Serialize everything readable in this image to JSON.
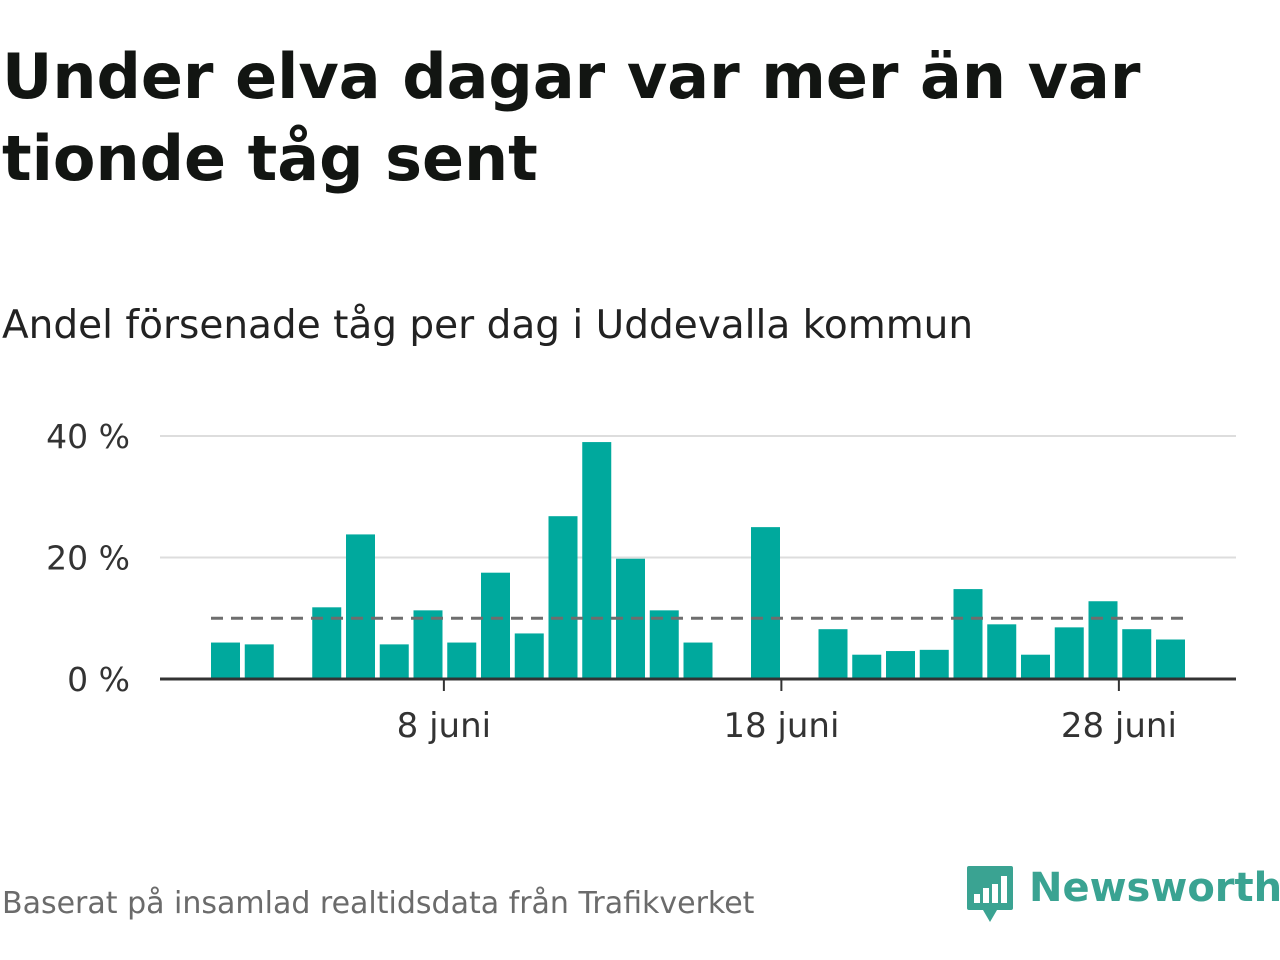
{
  "title": "Under elva dagar var mer än var tionde tåg sent",
  "subtitle": "Andel försenade tåg per dag i Uddevalla kommun",
  "footer": "Baserat på insamlad realtidsdata från Trafikverket",
  "brand": {
    "name": "Newsworthy",
    "color": "#3aa392",
    "icon": "newsworthy-logo-icon"
  },
  "colors": {
    "bar": "#00a99d",
    "reference_line": "#6e6e6e",
    "grid": "#dddddd",
    "axis": "#333333"
  },
  "chart_data": {
    "type": "bar",
    "x_unit": "day of June",
    "x": [
      1,
      2,
      3,
      4,
      5,
      6,
      7,
      8,
      9,
      10,
      11,
      12,
      13,
      14,
      15,
      16,
      17,
      18,
      19,
      20,
      21,
      22,
      23,
      24,
      25,
      26,
      27,
      28,
      29
    ],
    "values": [
      6,
      5.7,
      null,
      11.8,
      23.8,
      5.7,
      11.3,
      6,
      17.5,
      7.5,
      26.8,
      39,
      19.8,
      11.3,
      6,
      null,
      25,
      null,
      8.2,
      4,
      4.6,
      4.8,
      14.8,
      9,
      4,
      8.5,
      12.8,
      8.2,
      6.5
    ],
    "ylim": [
      0,
      40
    ],
    "yticks": [
      0,
      20,
      40
    ],
    "ytick_labels": [
      "0 %",
      "20 %",
      "40 %"
    ],
    "xticks": [
      8,
      18,
      28
    ],
    "xtick_labels": [
      "8 juni",
      "18 juni",
      "28 juni"
    ],
    "reference_line": 10,
    "grid": true,
    "xlabel": "",
    "ylabel": ""
  }
}
